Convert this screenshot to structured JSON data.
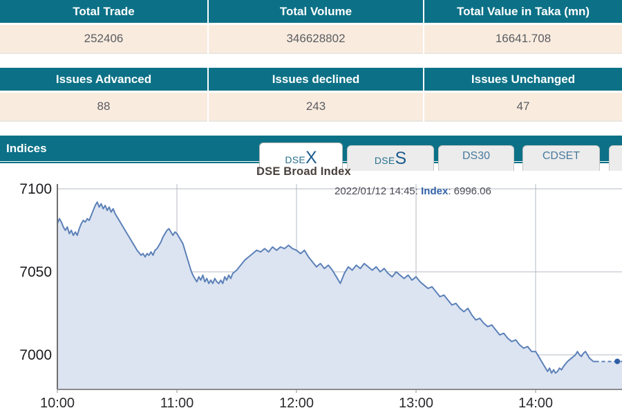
{
  "summary_table_1": {
    "headers": [
      "Total Trade",
      "Total Volume",
      "Total Value in Taka (mn)"
    ],
    "values": [
      "252406",
      "346628802",
      "16641.708"
    ]
  },
  "summary_table_2": {
    "headers": [
      "Issues Advanced",
      "Issues declined",
      "Issues Unchanged"
    ],
    "values": [
      "88",
      "243",
      "47"
    ]
  },
  "indices": {
    "label": "Indices",
    "tabs": [
      {
        "label": "DSEX",
        "prefix": "DSE",
        "suffix": "X",
        "active": true
      },
      {
        "label": "DSES",
        "prefix": "DSE",
        "suffix": "S",
        "active": false
      },
      {
        "label": "DS30",
        "active": false
      },
      {
        "label": "CDSET",
        "active": false
      }
    ]
  },
  "colors": {
    "teal": "#0c7187",
    "cream": "#f9ecdf",
    "line": "#5b80b8",
    "fill": "#dce4f1",
    "marker": "#2d5ea6",
    "grid": "#b3b8c0",
    "axis": "#6e6e6e"
  },
  "chart_data": {
    "type": "area",
    "title": "DSE Broad Index",
    "annotation": {
      "datetime": "2022/01/12 14:45:",
      "series": "Index",
      "value": ": 6996.06"
    },
    "x_axis": {
      "tick_labels": [
        "10:00",
        "11:00",
        "12:00",
        "13:00",
        "14:00"
      ],
      "tick_minutes": [
        0,
        60,
        120,
        180,
        240
      ],
      "range_minutes": [
        0,
        285
      ],
      "unit": "minutes after 10:00"
    },
    "y_axis": {
      "tick_labels": [
        "7100",
        "7050",
        "7000"
      ],
      "tick_values": [
        7100,
        7050,
        7000
      ],
      "range": [
        6979,
        7103
      ]
    },
    "grid": true,
    "legend": "none",
    "last_point": {
      "t": 281,
      "value": 6996.06
    },
    "tail": {
      "from_t": 270,
      "value": 6996,
      "style": "dashed"
    },
    "series": [
      {
        "name": "Index",
        "points": [
          [
            0,
            7079
          ],
          [
            1,
            7082
          ],
          [
            2,
            7080
          ],
          [
            3,
            7077
          ],
          [
            4,
            7075
          ],
          [
            5,
            7077
          ],
          [
            6,
            7073
          ],
          [
            7,
            7075
          ],
          [
            8,
            7072
          ],
          [
            9,
            7074
          ],
          [
            10,
            7072
          ],
          [
            11,
            7076
          ],
          [
            12,
            7079
          ],
          [
            13,
            7081
          ],
          [
            14,
            7080
          ],
          [
            15,
            7082
          ],
          [
            16,
            7081
          ],
          [
            17,
            7084
          ],
          [
            18,
            7087
          ],
          [
            19,
            7090
          ],
          [
            20,
            7092
          ],
          [
            21,
            7089
          ],
          [
            22,
            7091
          ],
          [
            23,
            7088
          ],
          [
            24,
            7090
          ],
          [
            25,
            7087
          ],
          [
            26,
            7089
          ],
          [
            27,
            7086
          ],
          [
            28,
            7088
          ],
          [
            29,
            7085
          ],
          [
            30,
            7083
          ],
          [
            32,
            7079
          ],
          [
            34,
            7075
          ],
          [
            36,
            7071
          ],
          [
            38,
            7067
          ],
          [
            40,
            7063
          ],
          [
            42,
            7060
          ],
          [
            43,
            7061
          ],
          [
            44,
            7059
          ],
          [
            45,
            7061
          ],
          [
            46,
            7060
          ],
          [
            47,
            7062
          ],
          [
            48,
            7060
          ],
          [
            49,
            7063
          ],
          [
            50,
            7064
          ],
          [
            51,
            7066
          ],
          [
            52,
            7068
          ],
          [
            53,
            7071
          ],
          [
            54,
            7073
          ],
          [
            55,
            7075
          ],
          [
            56,
            7076
          ],
          [
            57,
            7074
          ],
          [
            58,
            7072
          ],
          [
            59,
            7074
          ],
          [
            60,
            7073
          ],
          [
            61,
            7071
          ],
          [
            62,
            7069
          ],
          [
            63,
            7067
          ],
          [
            64,
            7063
          ],
          [
            65,
            7059
          ],
          [
            66,
            7055
          ],
          [
            67,
            7051
          ],
          [
            68,
            7048
          ],
          [
            69,
            7046
          ],
          [
            70,
            7044
          ],
          [
            71,
            7047
          ],
          [
            72,
            7045
          ],
          [
            73,
            7048
          ],
          [
            74,
            7044
          ],
          [
            75,
            7046
          ],
          [
            76,
            7043
          ],
          [
            77,
            7045
          ],
          [
            78,
            7043
          ],
          [
            79,
            7046
          ],
          [
            80,
            7044
          ],
          [
            81,
            7043
          ],
          [
            82,
            7045
          ],
          [
            83,
            7043
          ],
          [
            84,
            7047
          ],
          [
            85,
            7045
          ],
          [
            86,
            7048
          ],
          [
            87,
            7046
          ],
          [
            88,
            7049
          ],
          [
            90,
            7051
          ],
          [
            92,
            7054
          ],
          [
            94,
            7057
          ],
          [
            96,
            7059
          ],
          [
            98,
            7061
          ],
          [
            100,
            7063
          ],
          [
            102,
            7062
          ],
          [
            104,
            7064
          ],
          [
            106,
            7062
          ],
          [
            108,
            7065
          ],
          [
            110,
            7063
          ],
          [
            112,
            7065
          ],
          [
            114,
            7064
          ],
          [
            116,
            7066
          ],
          [
            118,
            7064
          ],
          [
            120,
            7063
          ],
          [
            122,
            7061
          ],
          [
            124,
            7063
          ],
          [
            126,
            7059
          ],
          [
            128,
            7056
          ],
          [
            130,
            7053
          ],
          [
            132,
            7055
          ],
          [
            134,
            7052
          ],
          [
            136,
            7054
          ],
          [
            138,
            7051
          ],
          [
            140,
            7047
          ],
          [
            142,
            7043
          ],
          [
            144,
            7049
          ],
          [
            146,
            7053
          ],
          [
            148,
            7051
          ],
          [
            150,
            7054
          ],
          [
            152,
            7052
          ],
          [
            154,
            7055
          ],
          [
            156,
            7053
          ],
          [
            158,
            7051
          ],
          [
            160,
            7053
          ],
          [
            162,
            7050
          ],
          [
            164,
            7052
          ],
          [
            166,
            7049
          ],
          [
            168,
            7047
          ],
          [
            170,
            7050
          ],
          [
            172,
            7048
          ],
          [
            174,
            7046
          ],
          [
            176,
            7048
          ],
          [
            178,
            7045
          ],
          [
            180,
            7047
          ],
          [
            182,
            7044
          ],
          [
            184,
            7042
          ],
          [
            186,
            7040
          ],
          [
            188,
            7041
          ],
          [
            190,
            7038
          ],
          [
            192,
            7035
          ],
          [
            194,
            7036
          ],
          [
            196,
            7033
          ],
          [
            198,
            7030
          ],
          [
            200,
            7031
          ],
          [
            202,
            7028
          ],
          [
            204,
            7026
          ],
          [
            206,
            7028
          ],
          [
            208,
            7024
          ],
          [
            210,
            7021
          ],
          [
            212,
            7022
          ],
          [
            214,
            7019
          ],
          [
            216,
            7017
          ],
          [
            218,
            7018
          ],
          [
            220,
            7015
          ],
          [
            222,
            7012
          ],
          [
            224,
            7013
          ],
          [
            226,
            7010
          ],
          [
            228,
            7008
          ],
          [
            230,
            7009
          ],
          [
            232,
            7006
          ],
          [
            234,
            7004
          ],
          [
            236,
            7005
          ],
          [
            238,
            7002
          ],
          [
            240,
            7002
          ],
          [
            242,
            6998
          ],
          [
            244,
            6994
          ],
          [
            245,
            6992
          ],
          [
            246,
            6990
          ],
          [
            247,
            6992
          ],
          [
            248,
            6989
          ],
          [
            249,
            6991
          ],
          [
            250,
            6989
          ],
          [
            251,
            6990
          ],
          [
            252,
            6992
          ],
          [
            253,
            6991
          ],
          [
            254,
            6993
          ],
          [
            256,
            6996
          ],
          [
            258,
            6998
          ],
          [
            260,
            7000
          ],
          [
            261,
            7002
          ],
          [
            262,
            7000
          ],
          [
            263,
            6999
          ],
          [
            264,
            7001
          ],
          [
            265,
            7002
          ],
          [
            266,
            7000
          ],
          [
            267,
            6998
          ],
          [
            268,
            6997
          ],
          [
            269,
            6996
          ],
          [
            270,
            6996
          ]
        ]
      }
    ]
  }
}
